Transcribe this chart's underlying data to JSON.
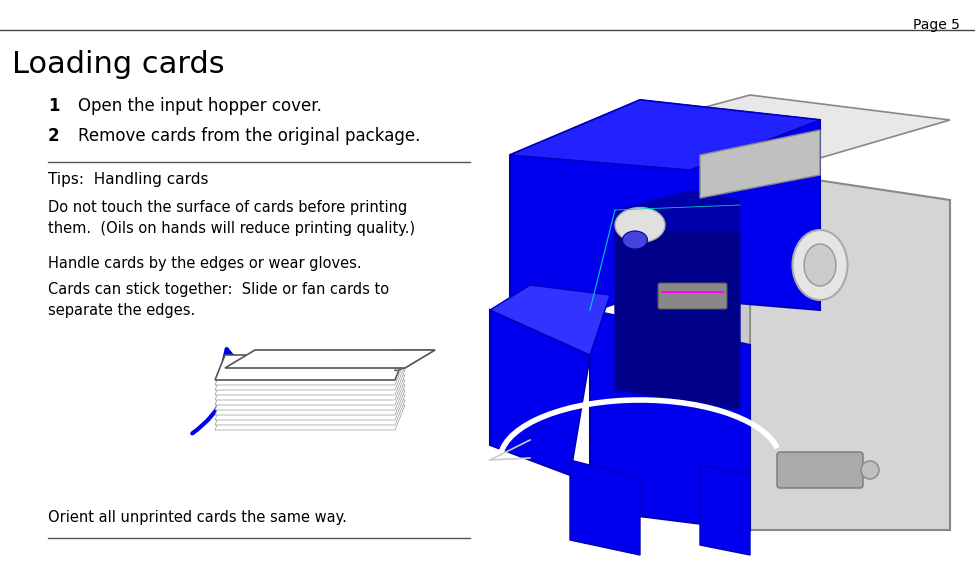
{
  "page_label": "Page 5",
  "title": "Loading cards",
  "steps": [
    {
      "num": "1",
      "text": "Open the input hopper cover."
    },
    {
      "num": "2",
      "text": "Remove cards from the original package."
    }
  ],
  "tips_heading": "Tips:  Handling cards",
  "tip1": "Do not touch the surface of cards before printing\nthem.  (Oils on hands will reduce printing quality.)",
  "tip2": "Handle cards by the edges or wear gloves.",
  "tip3": "Cards can stick together:  Slide or fan cards to\nseparate the edges.",
  "last_step": "Orient all unprinted cards the same way.",
  "bg_color": "#ffffff",
  "text_color": "#000000",
  "blue_color": "#0000ee",
  "dark_blue": "#0000aa",
  "gray_light": "#d8d8d8",
  "gray_mid": "#b0b0b0",
  "gray_dark": "#888888"
}
